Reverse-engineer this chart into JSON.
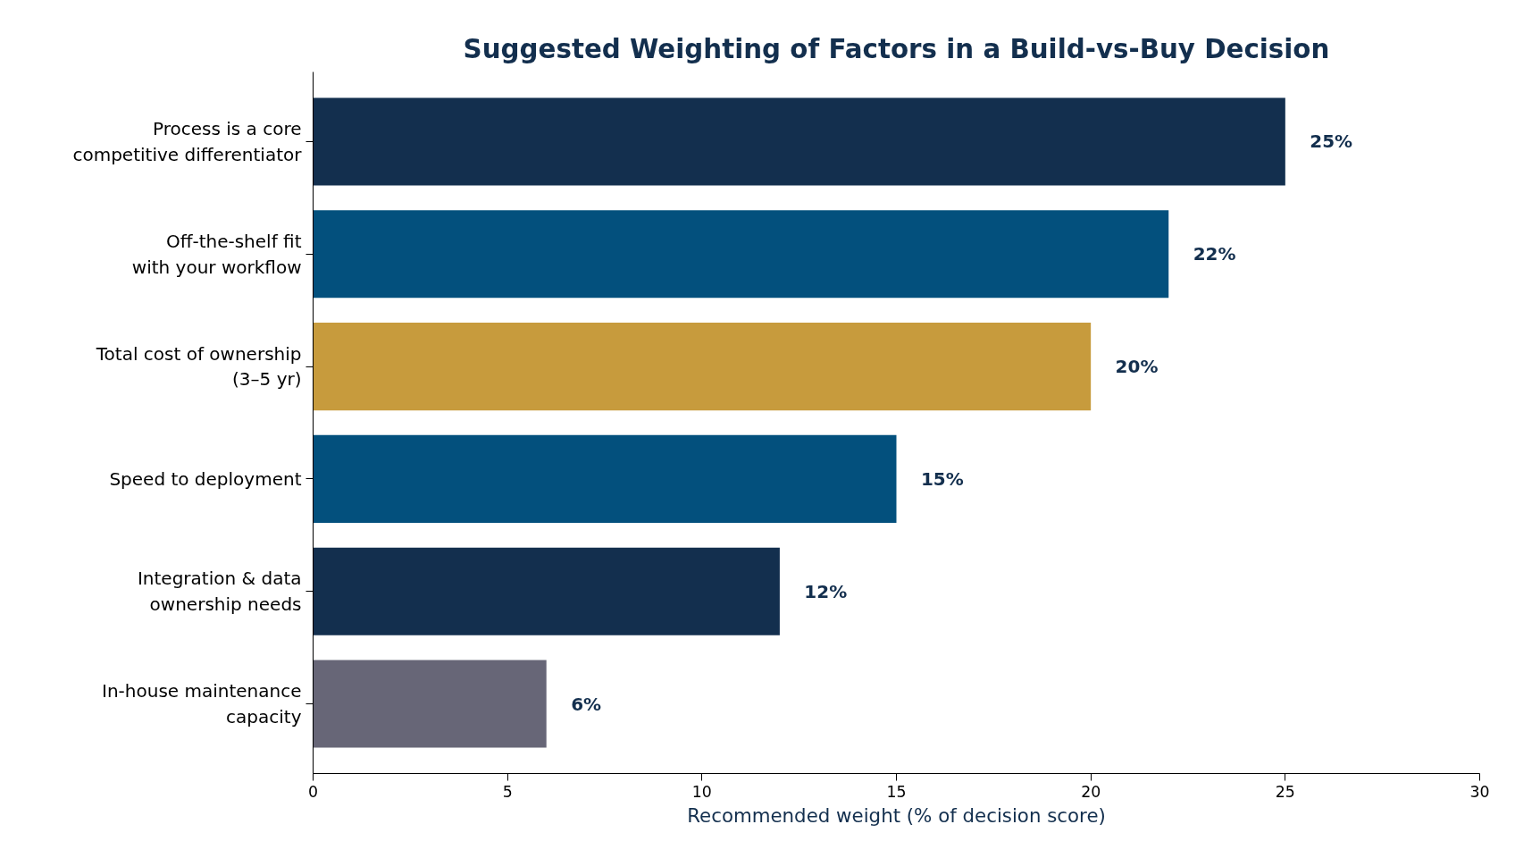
{
  "chart_data": {
    "type": "bar",
    "orientation": "horizontal",
    "title": "Suggested Weighting of Factors in a Build-vs-Buy Decision",
    "xlabel": "Recommended weight (% of decision score)",
    "categories": [
      "Process is a core\ncompetitive differentiator",
      "Off-the-shelf fit\nwith your workflow",
      "Total cost of ownership\n(3–5 yr)",
      "Speed to deployment",
      "Integration & data\nownership needs",
      "In-house maintenance\ncapacity"
    ],
    "values": [
      25,
      22,
      20,
      15,
      12,
      6
    ],
    "colors": [
      "#132f4e",
      "#03507d",
      "#c79b3d",
      "#03507d",
      "#132f4e",
      "#676677"
    ],
    "value_labels": [
      "25%",
      "22%",
      "20%",
      "15%",
      "12%",
      "6%"
    ],
    "xlim": [
      0,
      30
    ],
    "xticks": [
      0,
      5,
      10,
      15,
      20,
      25,
      30
    ],
    "grid": false
  }
}
